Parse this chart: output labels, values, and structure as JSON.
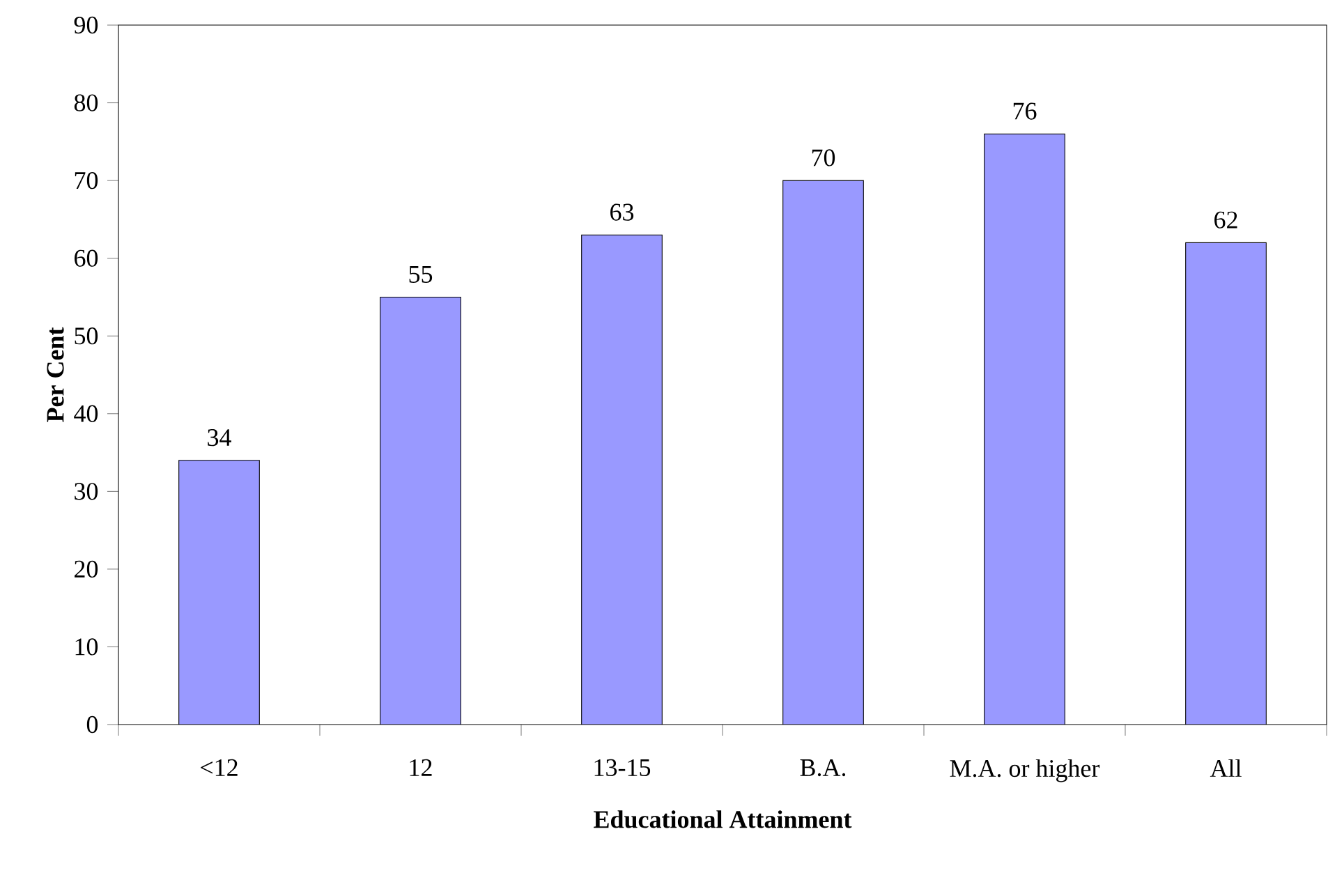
{
  "chart_data": {
    "type": "bar",
    "categories": [
      "<12",
      "12",
      "13-15",
      "B.A.",
      "M.A. or higher",
      "All"
    ],
    "values": [
      34,
      55,
      63,
      70,
      76,
      62
    ],
    "color": "#9999ff",
    "xlabel": "Educational Attainment",
    "ylabel": "Per Cent",
    "ylim": [
      0,
      90
    ],
    "yticks": [
      0,
      10,
      20,
      30,
      40,
      50,
      60,
      70,
      80,
      90
    ],
    "data_labels": true
  }
}
